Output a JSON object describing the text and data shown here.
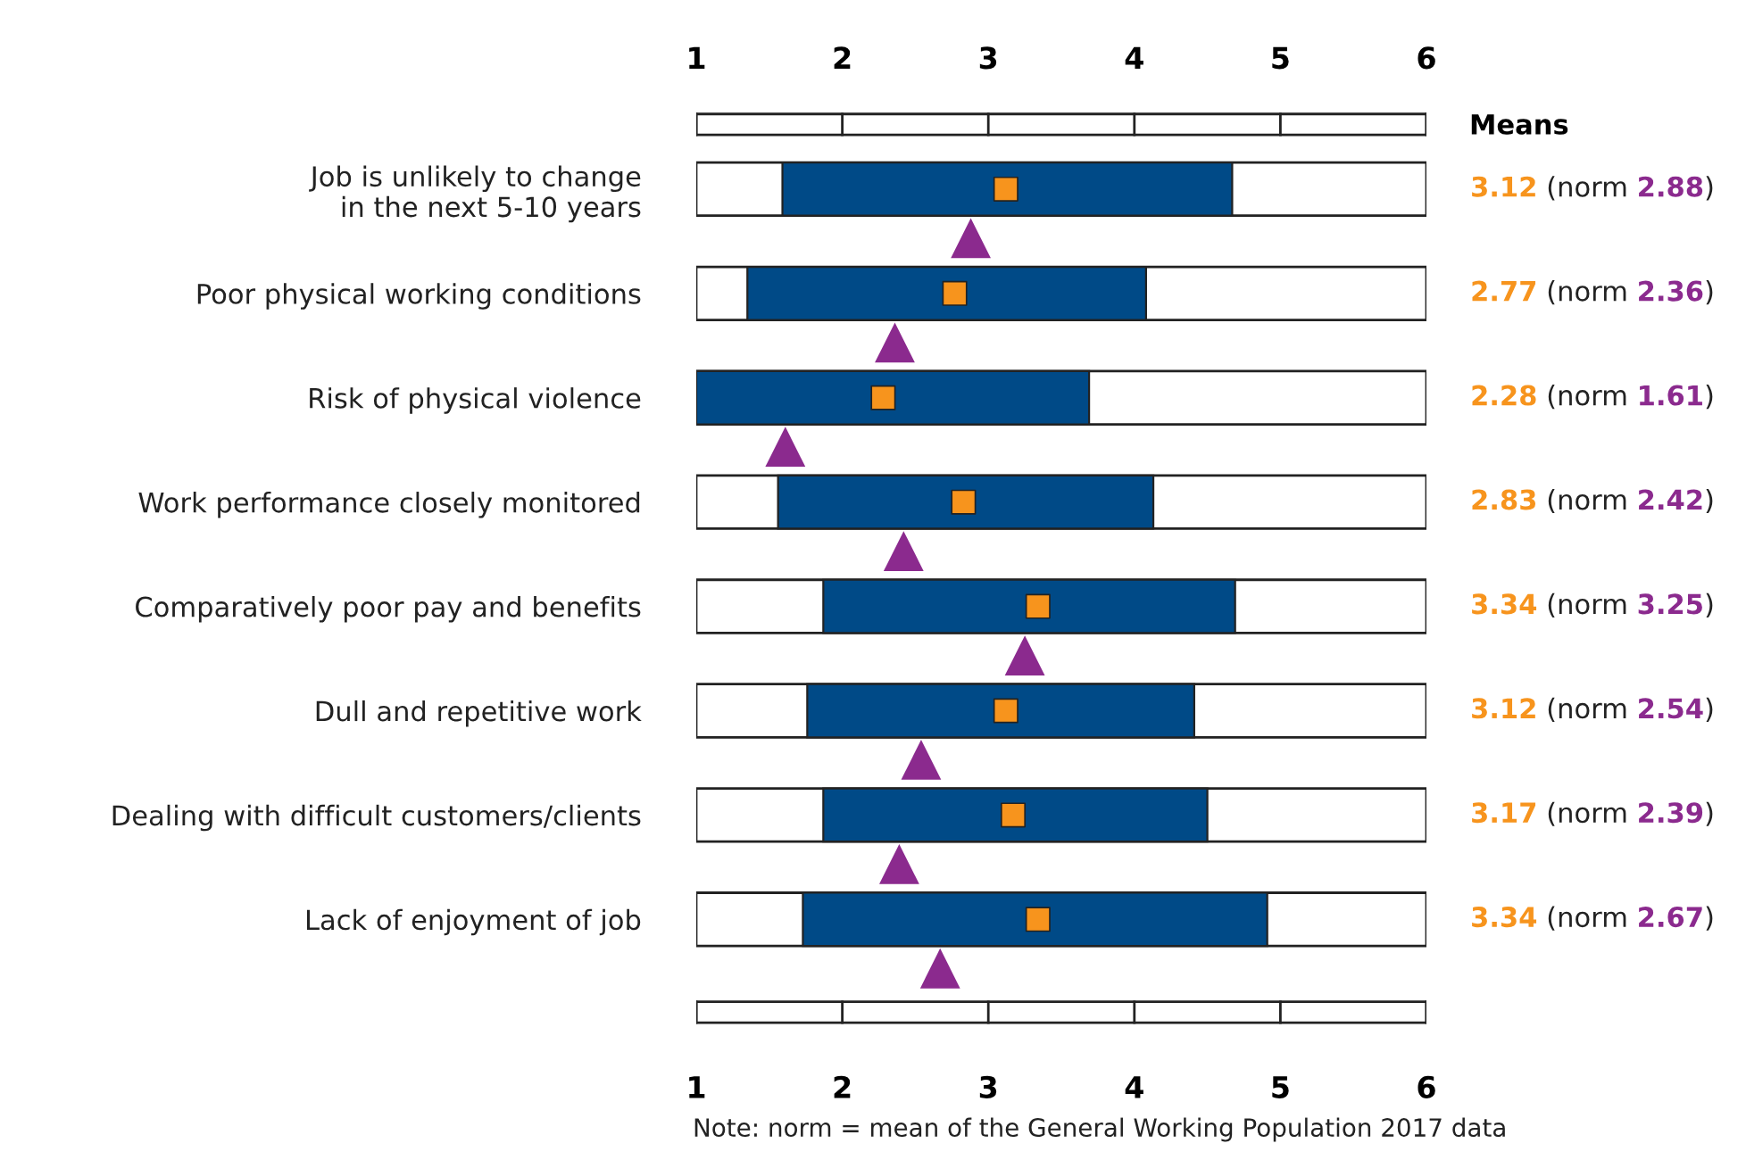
{
  "chart_data": {
    "type": "bar",
    "orientation": "horizontal",
    "categories": [
      "Job is unlikely to change\nin the next 5-10 years",
      "Poor physical working conditions",
      "Risk of physical violence",
      "Work performance closely monitored",
      "Comparatively poor pay and benefits",
      "Dull and repetitive work",
      "Dealing with difficult customers/clients",
      "Lack of enjoyment of job"
    ],
    "xlim": [
      1,
      6
    ],
    "xticks": [
      1,
      2,
      3,
      4,
      5,
      6
    ],
    "x2lim": [
      1,
      6
    ],
    "x2ticks": [
      1,
      2,
      3,
      4,
      5,
      6
    ],
    "series": [
      {
        "color": "#004a87",
        "base": [
          1.59,
          1.35,
          1.0,
          1.56,
          1.87,
          1.76,
          1.87,
          1.73
        ],
        "values": [
          3.08,
          2.73,
          2.69,
          2.57,
          2.82,
          2.65,
          2.63,
          3.18
        ]
      },
      {
        "type": "scatter",
        "marker": "square",
        "color": "#f7941d",
        "values": [
          3.12,
          2.77,
          2.28,
          2.83,
          3.34,
          3.12,
          3.17,
          3.34
        ],
        "value_labels": [
          "3.12",
          "2.77",
          "2.28",
          "2.83",
          "3.34",
          "3.12",
          "3.17",
          "3.34"
        ]
      },
      {
        "type": "scatter",
        "marker": "triangle",
        "color": "#8b2a8e",
        "values": [
          2.88,
          2.36,
          1.61,
          2.42,
          3.25,
          2.54,
          2.39,
          2.67
        ],
        "value_labels": [
          "(norm 2.88)",
          "(norm 2.36)",
          "(norm 1.61)",
          "(norm 2.42)",
          "(norm 3.25)",
          "(norm 2.54)",
          "(norm 2.39)",
          "(norm 2.67)"
        ]
      }
    ],
    "annotations": [
      "Means",
      "Note: norm = mean of the General Working Population 2017 data"
    ],
    "grid": false,
    "legend": false
  }
}
